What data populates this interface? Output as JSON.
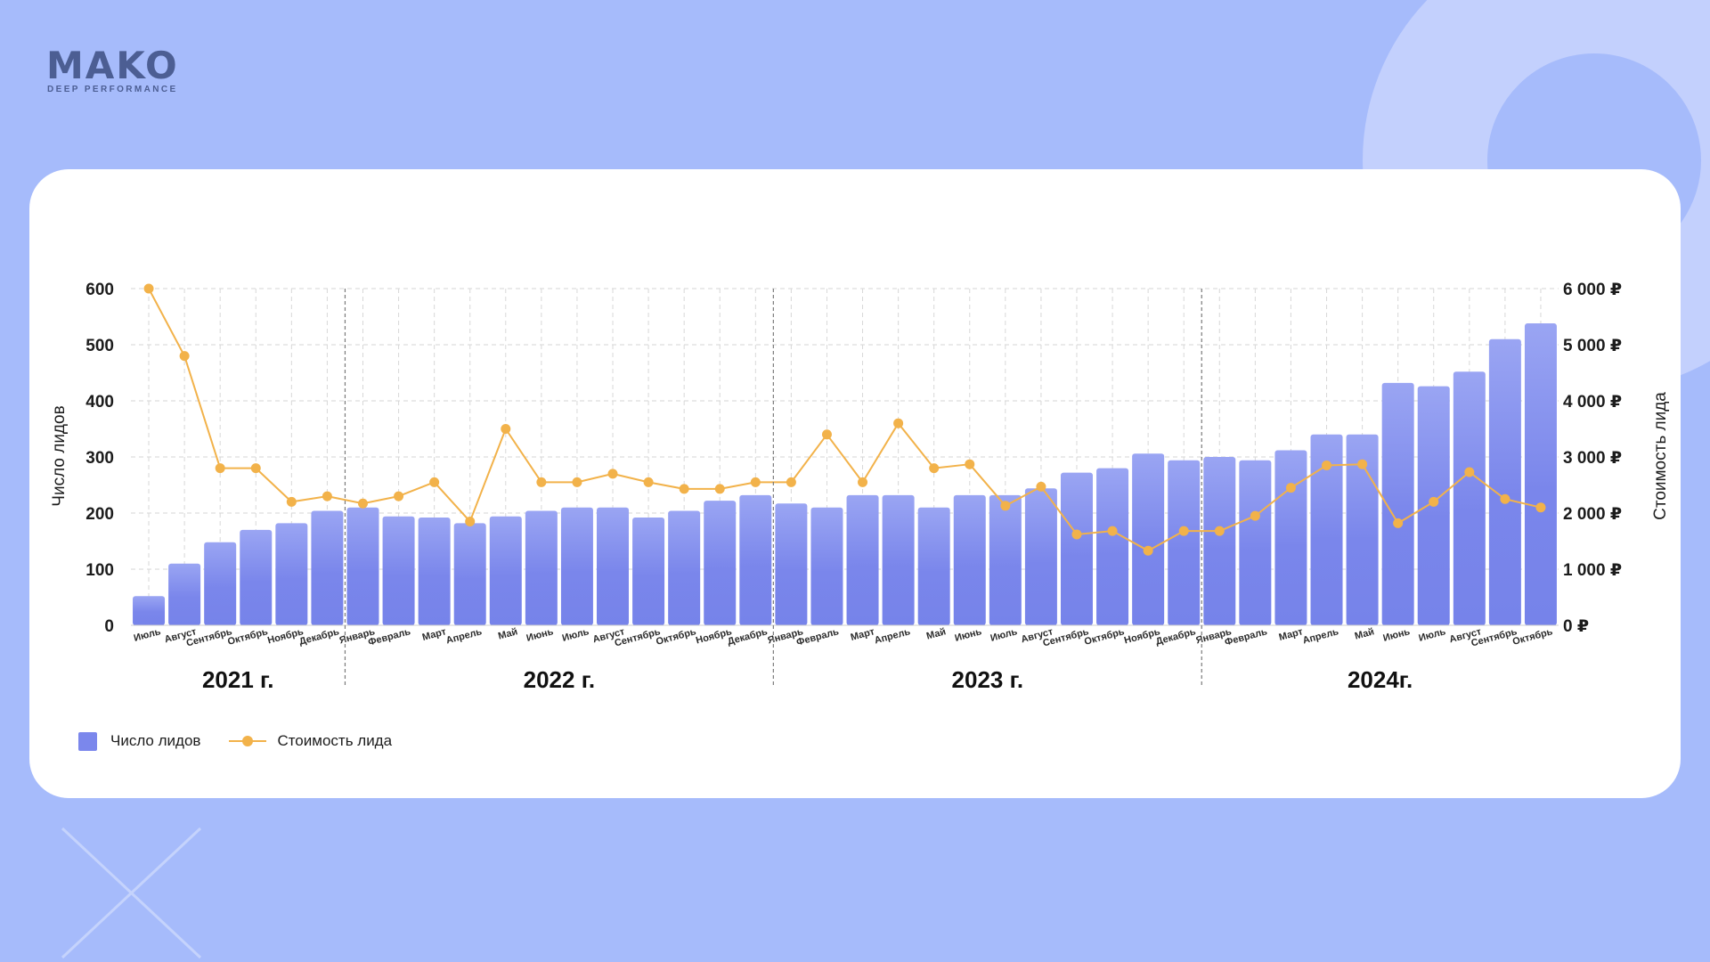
{
  "brand": {
    "name": "MAKO",
    "tagline": "DEEP PERFORMANCE"
  },
  "colors": {
    "background": "#a6bbfb",
    "bar": "#7b87ec",
    "line": "#f2b24a",
    "card": "#ffffff"
  },
  "chart_data": {
    "type": "bar",
    "categories": [
      "Июль",
      "Август",
      "Сентябрь",
      "Октябрь",
      "Ноябрь",
      "Декабрь",
      "Январь",
      "Февраль",
      "Март",
      "Апрель",
      "Май",
      "Июнь",
      "Июль",
      "Август",
      "Сентябрь",
      "Октябрь",
      "Ноябрь",
      "Декабрь",
      "Январь",
      "Февраль",
      "Март",
      "Апрель",
      "Май",
      "Июнь",
      "Июль",
      "Август",
      "Сентябрь",
      "Октябрь",
      "Ноябрь",
      "Декабрь",
      "Январь",
      "Февраль",
      "Март",
      "Апрель",
      "Май",
      "Июнь",
      "Июль",
      "Август",
      "Сентябрь",
      "Октябрь"
    ],
    "year_groups": [
      {
        "label": "2021 г.",
        "count": 6
      },
      {
        "label": "2022 г.",
        "count": 12
      },
      {
        "label": "2023 г.",
        "count": 12
      },
      {
        "label": "2024г.",
        "count": 10
      }
    ],
    "series": [
      {
        "name": "Число лидов",
        "type": "bar",
        "axis": "left",
        "values": [
          52,
          110,
          148,
          170,
          182,
          204,
          210,
          194,
          192,
          182,
          194,
          204,
          210,
          210,
          192,
          204,
          222,
          232,
          217,
          210,
          232,
          232,
          210,
          232,
          232,
          244,
          272,
          280,
          306,
          294,
          300,
          294,
          312,
          340,
          340,
          432,
          426,
          452,
          510,
          538
        ]
      },
      {
        "name": "Стоимость лида",
        "type": "line",
        "axis": "right",
        "values": [
          6000,
          4800,
          2800,
          2800,
          2200,
          2300,
          2170,
          2300,
          2550,
          1850,
          3500,
          2550,
          2550,
          2700,
          2550,
          2430,
          2430,
          2550,
          2550,
          3400,
          2550,
          3600,
          2800,
          2870,
          2130,
          2470,
          1620,
          1680,
          1330,
          1680,
          1680,
          1950,
          2450,
          2850,
          2870,
          1820,
          2200,
          2730,
          2250,
          2100
        ]
      }
    ],
    "y_left": {
      "label": "Число лидов",
      "ticks": [
        "0",
        "100",
        "200",
        "300",
        "400",
        "500",
        "600"
      ],
      "range": [
        0,
        600
      ]
    },
    "y_right": {
      "label": "Стоимость лида",
      "ticks": [
        "0 ₽",
        "1 000 ₽",
        "2 000 ₽",
        "3 000 ₽",
        "4 000 ₽",
        "5 000 ₽",
        "6 000 ₽"
      ],
      "range": [
        0,
        6000
      ]
    },
    "grid": true,
    "legend": {
      "placement": "bottom-left",
      "items": [
        {
          "label": "Число лидов"
        },
        {
          "label": "Стоимость лида"
        }
      ]
    }
  }
}
